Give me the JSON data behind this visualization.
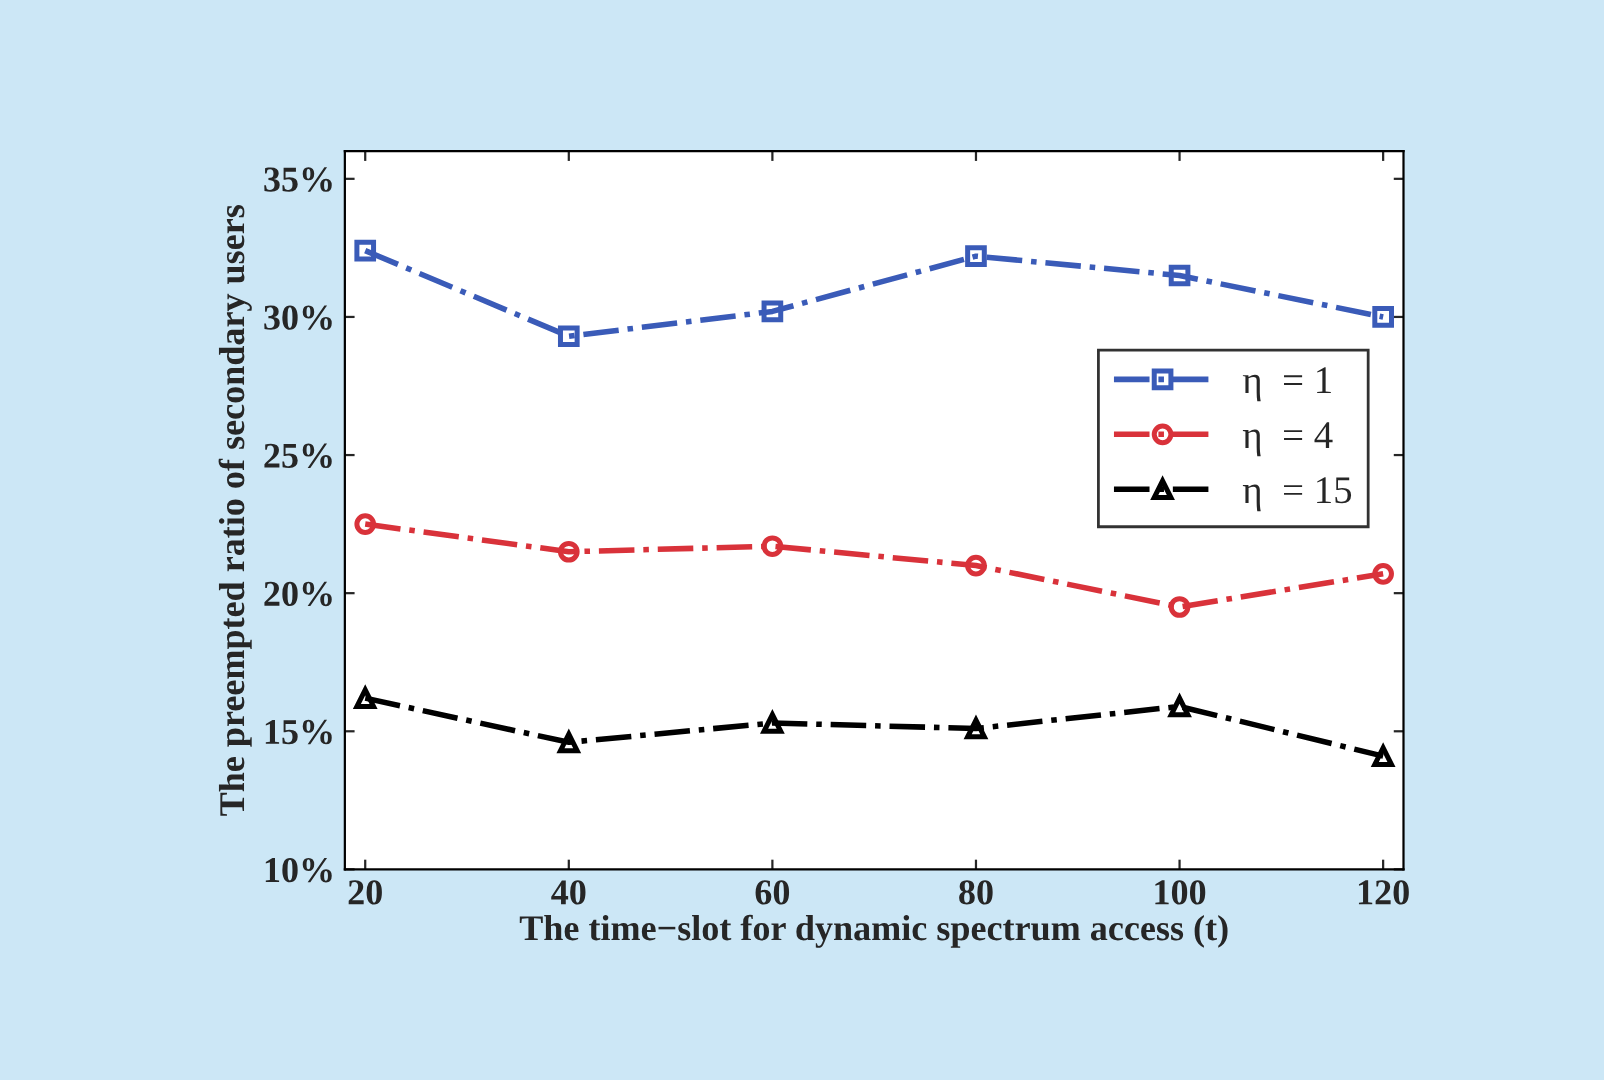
{
  "chart_data": {
    "type": "line",
    "xlabel": "The time−slot for dynamic spectrum access (t)",
    "ylabel": "The preempted ratio of secondary users",
    "x": [
      20,
      40,
      60,
      80,
      100,
      120
    ],
    "series": [
      {
        "name": "η  = 1",
        "color": "#3a5bb8",
        "marker": "square",
        "line_style": "dashdot",
        "values": [
          32.4,
          29.3,
          30.2,
          32.2,
          31.5,
          30.0
        ]
      },
      {
        "name": "η  = 4",
        "color": "#d9323a",
        "marker": "circle",
        "line_style": "dashdot",
        "values": [
          22.5,
          21.5,
          21.7,
          21.0,
          19.5,
          20.7
        ]
      },
      {
        "name": "η  = 15",
        "color": "#000000",
        "marker": "triangle",
        "line_style": "dashdot",
        "values": [
          16.2,
          14.6,
          15.3,
          15.1,
          15.9,
          14.1
        ]
      }
    ],
    "xlim": [
      18,
      122
    ],
    "xticks": [
      20,
      40,
      60,
      80,
      100,
      120
    ],
    "ylim": [
      10,
      36
    ],
    "yticks": [
      {
        "value": 10,
        "label": "10%"
      },
      {
        "value": 15,
        "label": "15%"
      },
      {
        "value": 20,
        "label": "20%"
      },
      {
        "value": 25,
        "label": "25%"
      },
      {
        "value": 30,
        "label": "30%"
      },
      {
        "value": 35,
        "label": "35%"
      }
    ],
    "grid": false,
    "legend": "right"
  }
}
